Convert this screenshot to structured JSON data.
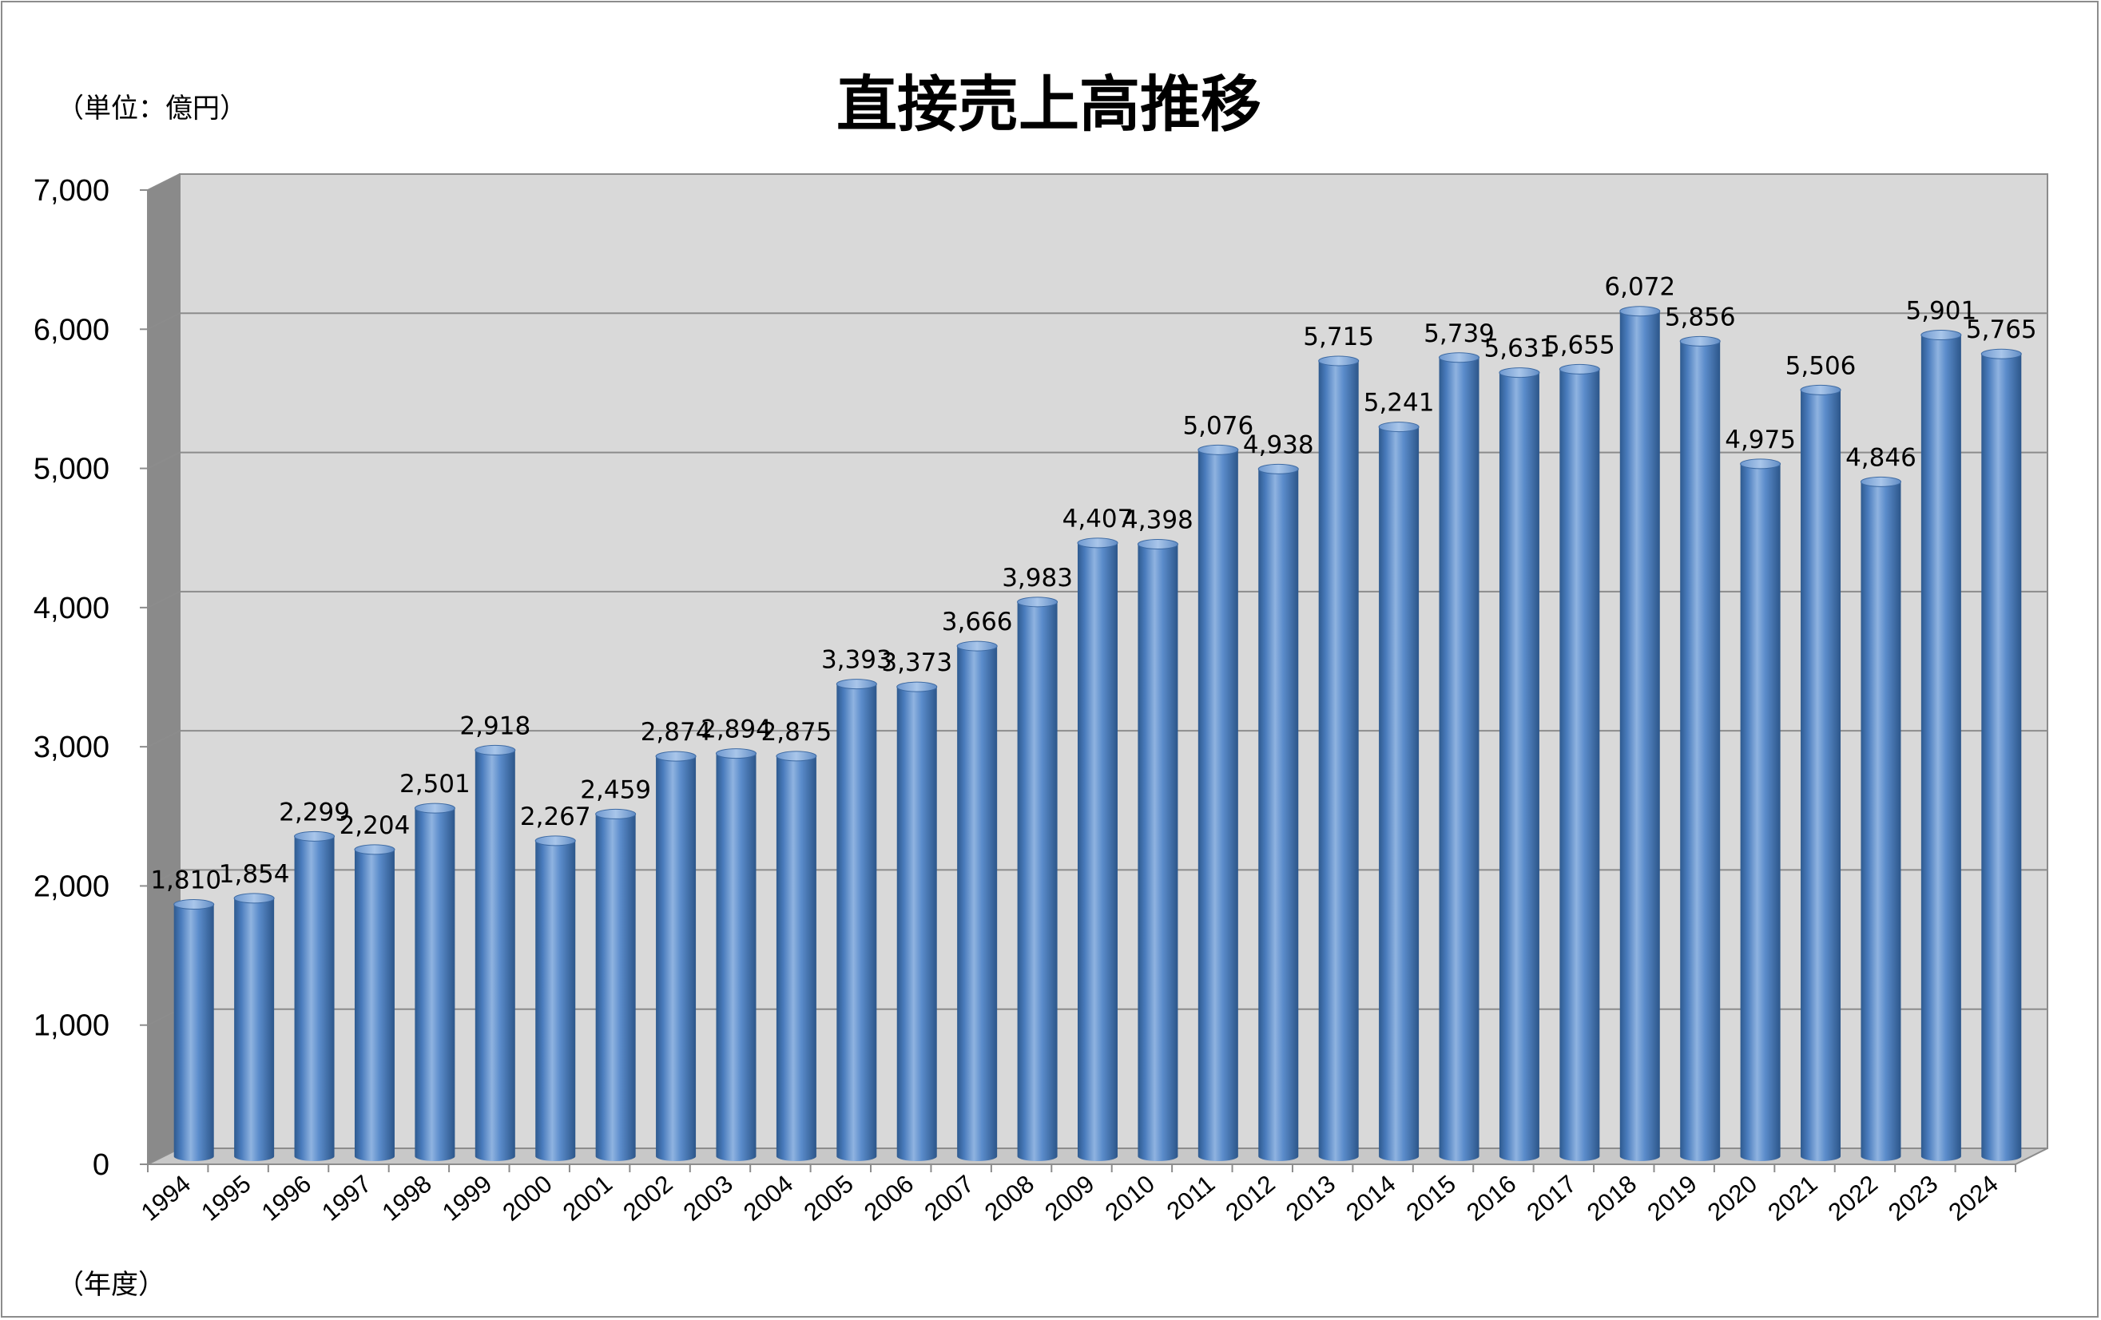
{
  "title": "直接売上高推移",
  "unit_label": "（単位：億円）",
  "x_unit_label": "（年度）",
  "colors": {
    "bar": "#4f81bd",
    "bar_dark": "#2e5a8f",
    "bar_light": "#8fb3e0",
    "plot_back": "#d9d9d9",
    "gridline": "#8c8c8c"
  },
  "chart_data": {
    "type": "bar",
    "title": "直接売上高推移",
    "xlabel": "（年度）",
    "ylabel": "（単位：億円）",
    "ylim": [
      0,
      7000
    ],
    "yticks": [
      0,
      1000,
      2000,
      3000,
      4000,
      5000,
      6000,
      7000
    ],
    "ytick_labels": [
      "0",
      "1,000",
      "2,000",
      "3,000",
      "4,000",
      "5,000",
      "6,000",
      "7,000"
    ],
    "grid": true,
    "legend": "none",
    "style": "3d-cylinder",
    "categories": [
      "1994",
      "1995",
      "1996",
      "1997",
      "1998",
      "1999",
      "2000",
      "2001",
      "2002",
      "2003",
      "2004",
      "2005",
      "2006",
      "2007",
      "2008",
      "2009",
      "2010",
      "2011",
      "2012",
      "2013",
      "2014",
      "2015",
      "2016",
      "2017",
      "2018",
      "2019",
      "2020",
      "2021",
      "2022",
      "2023",
      "2024"
    ],
    "values": [
      1810,
      1854,
      2299,
      2204,
      2501,
      2918,
      2267,
      2459,
      2874,
      2894,
      2875,
      3393,
      3373,
      3666,
      3983,
      4407,
      4398,
      5076,
      4938,
      5715,
      5241,
      5739,
      5631,
      5655,
      6072,
      5856,
      4975,
      5506,
      4846,
      5901,
      5765
    ],
    "value_labels": [
      "1,810",
      "1,854",
      "2,299",
      "2,204",
      "2,501",
      "2,918",
      "2,267",
      "2,459",
      "2,874",
      "2,894",
      "2,875",
      "3,393",
      "3,373",
      "3,666",
      "3,983",
      "4,407",
      "4,398",
      "5,076",
      "4,938",
      "5,715",
      "5,241",
      "5,739",
      "5,631",
      "5,655",
      "6,072",
      "5,856",
      "4,975",
      "5,506",
      "4,846",
      "5,901",
      "5,765"
    ]
  }
}
